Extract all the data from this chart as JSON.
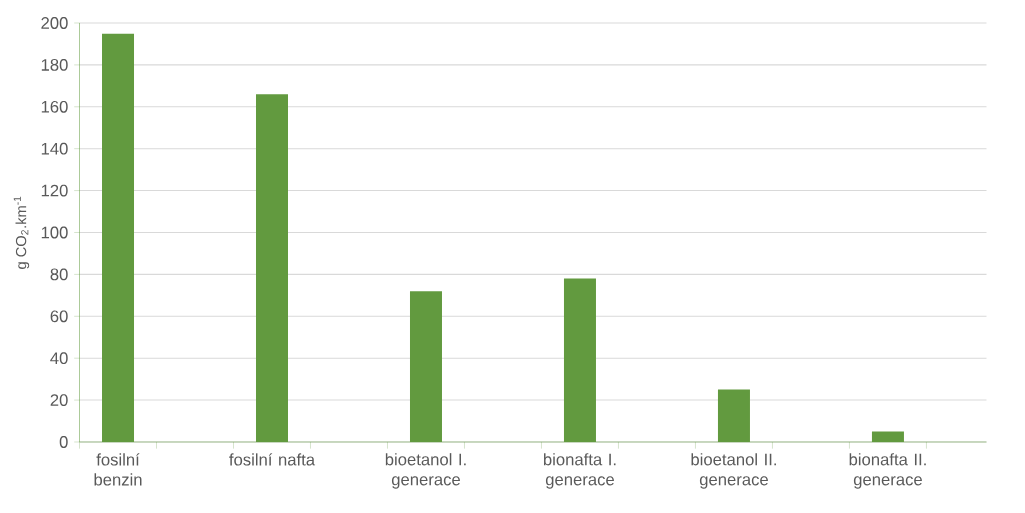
{
  "chart_data": {
    "type": "bar",
    "ylabel": "g CO$_{2}$.km$^{-1}$",
    "categories": [
      "fosilní benzin",
      null,
      "fosilní nafta",
      null,
      "bioetanol I. generace",
      null,
      "bionafta I. generace",
      null,
      "bioetanol II. generace",
      null,
      "bionafta II. generace",
      null
    ],
    "values": [
      195,
      null,
      166,
      null,
      72,
      null,
      78,
      null,
      25,
      null,
      5,
      null
    ],
    "color": "#629a3f",
    "ylim": [
      0,
      200
    ],
    "yticks": [
      0,
      20,
      40,
      60,
      80,
      100,
      120,
      140,
      160,
      180,
      200
    ],
    "grid": "y"
  }
}
